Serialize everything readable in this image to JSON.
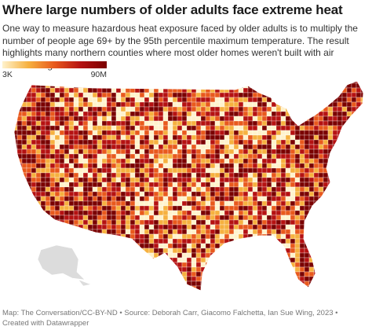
{
  "title": "Where large numbers of older adults face extreme heat",
  "subtitle": "One way to measure hazardous heat exposure faced by older adults is to multiply the number of people age 69+ by the 95th percentile maximum temperature. The result highlights many northern counties where most older homes weren't built with air conditioning.",
  "legend": {
    "labels": [
      "3K",
      "90M"
    ],
    "colors": [
      "#fff2cc",
      "#f6b13f",
      "#e8591d",
      "#b51212",
      "#7a0000"
    ]
  },
  "footer": "Map: The Conversation/CC-BY-ND • Source: Deborah Carr, Giacomo Falchetta, Ian Sue Wing, 2023 • Created with Datawrapper"
}
